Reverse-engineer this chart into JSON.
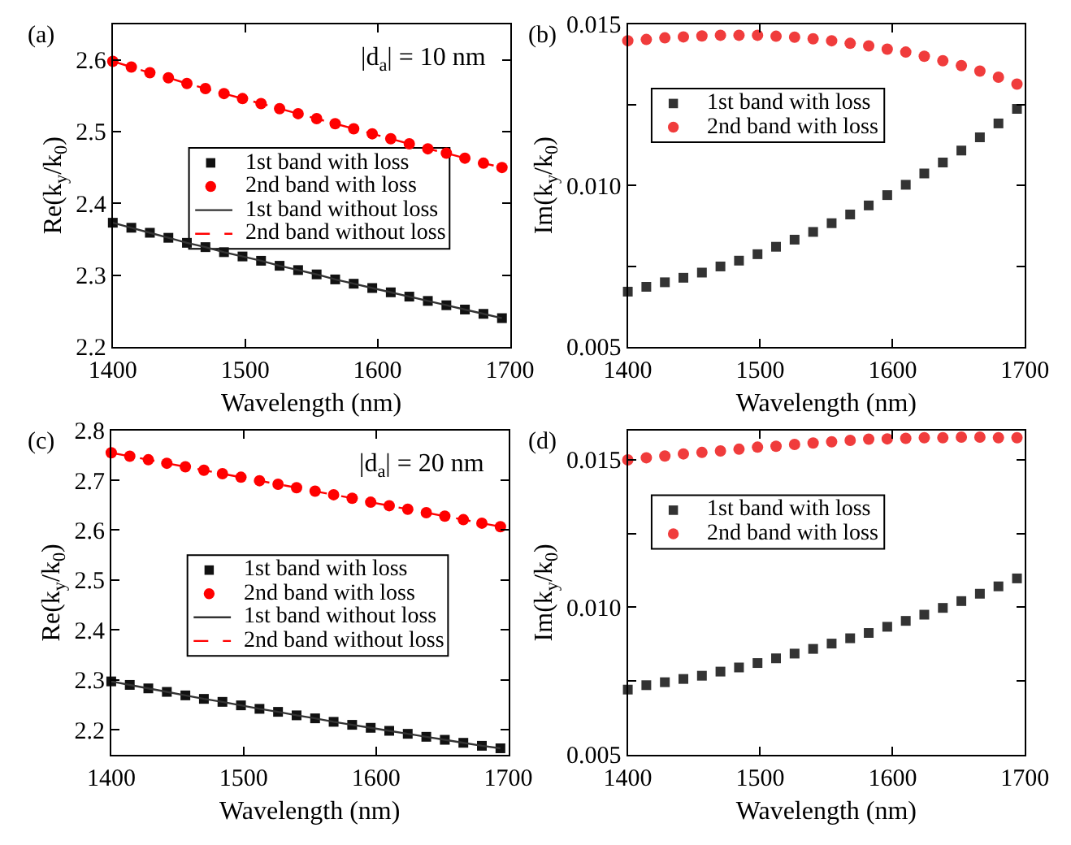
{
  "chart_data": [
    {
      "type": "scatter",
      "xlabel": "Wavelength (nm)",
      "ylabel": "Re(k$_{y}$/k$_{0}$)",
      "annotations": [
        "(a)",
        "|d$_{a}$| = 10 nm"
      ],
      "x": [
        1400,
        1414,
        1428,
        1442,
        1456,
        1470,
        1484,
        1498,
        1512,
        1526,
        1540,
        1554,
        1568,
        1582,
        1596,
        1610,
        1624,
        1638,
        1652,
        1666,
        1680,
        1694
      ],
      "xlim": [
        1400,
        1700
      ],
      "xticks": [
        1400,
        1500,
        1600,
        1700
      ],
      "ylim": [
        2.2,
        2.65
      ],
      "yticks": [
        2.2,
        2.3,
        2.4,
        2.5,
        2.6
      ],
      "grid": false,
      "legend": "center",
      "series": [
        {
          "name": "1st band with loss",
          "marker": "square",
          "color": "#111111",
          "values": [
            2.373,
            2.366,
            2.359,
            2.352,
            2.345,
            2.339,
            2.332,
            2.326,
            2.32,
            2.313,
            2.307,
            2.301,
            2.294,
            2.288,
            2.282,
            2.276,
            2.27,
            2.264,
            2.258,
            2.252,
            2.246,
            2.24
          ]
        },
        {
          "name": "2nd band with loss",
          "marker": "circle",
          "color": "#ff0000",
          "values": [
            2.598,
            2.59,
            2.582,
            2.575,
            2.567,
            2.56,
            2.553,
            2.546,
            2.539,
            2.532,
            2.525,
            2.518,
            2.511,
            2.504,
            2.497,
            2.49,
            2.483,
            2.476,
            2.47,
            2.463,
            2.456,
            2.45
          ]
        },
        {
          "name": "1st band without loss",
          "type": "line",
          "line_style": "solid",
          "color": "#333333",
          "values": [
            2.373,
            2.366,
            2.359,
            2.352,
            2.345,
            2.339,
            2.332,
            2.326,
            2.32,
            2.313,
            2.307,
            2.301,
            2.294,
            2.288,
            2.282,
            2.276,
            2.27,
            2.264,
            2.258,
            2.252,
            2.246,
            2.24
          ]
        },
        {
          "name": "2nd band without loss",
          "type": "line",
          "line_style": "dashed",
          "color": "#ff0000",
          "values": [
            2.598,
            2.59,
            2.582,
            2.575,
            2.567,
            2.56,
            2.553,
            2.546,
            2.539,
            2.532,
            2.525,
            2.518,
            2.511,
            2.504,
            2.497,
            2.49,
            2.483,
            2.476,
            2.47,
            2.463,
            2.456,
            2.45
          ]
        }
      ]
    },
    {
      "type": "scatter",
      "xlabel": "Wavelength (nm)",
      "ylabel": "Im(k$_{y}$/k$_{0}$)",
      "annotations": [
        "(b)"
      ],
      "x": [
        1400,
        1414,
        1428,
        1442,
        1456,
        1470,
        1484,
        1498,
        1512,
        1526,
        1540,
        1554,
        1568,
        1582,
        1596,
        1610,
        1624,
        1638,
        1652,
        1666,
        1680,
        1694
      ],
      "xlim": [
        1400,
        1700
      ],
      "xticks": [
        1400,
        1500,
        1600,
        1700
      ],
      "ylim": [
        0.005,
        0.015
      ],
      "yticks": [
        0.005,
        {
          "value": 0.0075,
          "label": null
        },
        {
          "value": 0.01,
          "label": "0.010"
        },
        {
          "value": 0.0125,
          "label": null
        },
        0.015
      ],
      "grid": false,
      "legend": "top left",
      "series": [
        {
          "name": "1st band with loss",
          "marker": "square",
          "color": "#333333",
          "values": [
            0.00671,
            0.00686,
            0.007,
            0.00714,
            0.0073,
            0.00749,
            0.00767,
            0.00787,
            0.0081,
            0.00832,
            0.00856,
            0.00883,
            0.0091,
            0.00938,
            0.0097,
            0.01002,
            0.01037,
            0.01071,
            0.01108,
            0.01149,
            0.01192,
            0.01237
          ]
        },
        {
          "name": "2nd band with loss",
          "marker": "circle",
          "color": "#f03c3c",
          "values": [
            0.01448,
            0.01452,
            0.01457,
            0.0146,
            0.01463,
            0.01465,
            0.01465,
            0.01465,
            0.01462,
            0.01459,
            0.01454,
            0.01448,
            0.0144,
            0.01432,
            0.01422,
            0.01413,
            0.014,
            0.01386,
            0.01371,
            0.01354,
            0.01335,
            0.01314
          ]
        }
      ]
    },
    {
      "type": "scatter",
      "xlabel": "Wavelength (nm)",
      "ylabel": "Re(k$_{y}$/k$_{0}$)",
      "annotations": [
        "(c)",
        "|d$_{a}$| = 20 nm"
      ],
      "x": [
        1400,
        1414,
        1428,
        1442,
        1456,
        1470,
        1484,
        1498,
        1512,
        1526,
        1540,
        1554,
        1568,
        1582,
        1596,
        1610,
        1624,
        1638,
        1652,
        1666,
        1680,
        1694
      ],
      "xlim": [
        1400,
        1700
      ],
      "xticks": [
        1400,
        1500,
        1600,
        1700
      ],
      "ylim": [
        2.15,
        2.8
      ],
      "yticks": [
        2.2,
        2.3,
        2.4,
        2.5,
        2.6,
        2.7,
        2.8
      ],
      "grid": false,
      "legend": "center",
      "series": [
        {
          "name": "1st band with loss",
          "marker": "square",
          "color": "#111111",
          "values": [
            2.297,
            2.29,
            2.283,
            2.276,
            2.269,
            2.262,
            2.256,
            2.249,
            2.242,
            2.236,
            2.229,
            2.223,
            2.216,
            2.21,
            2.204,
            2.198,
            2.192,
            2.186,
            2.18,
            2.174,
            2.168,
            2.163
          ]
        },
        {
          "name": "2nd band with loss",
          "marker": "circle",
          "color": "#ff0000",
          "values": [
            2.755,
            2.748,
            2.741,
            2.734,
            2.727,
            2.72,
            2.713,
            2.706,
            2.699,
            2.692,
            2.685,
            2.678,
            2.671,
            2.664,
            2.656,
            2.649,
            2.642,
            2.635,
            2.628,
            2.621,
            2.614,
            2.607
          ]
        },
        {
          "name": "1st band without loss",
          "type": "line",
          "line_style": "solid",
          "color": "#333333",
          "values": [
            2.297,
            2.29,
            2.283,
            2.276,
            2.269,
            2.262,
            2.256,
            2.249,
            2.242,
            2.236,
            2.229,
            2.223,
            2.216,
            2.21,
            2.204,
            2.198,
            2.192,
            2.186,
            2.18,
            2.174,
            2.168,
            2.163
          ]
        },
        {
          "name": "2nd band without loss",
          "type": "line",
          "line_style": "dashed",
          "color": "#ff0000",
          "values": [
            2.755,
            2.748,
            2.741,
            2.734,
            2.727,
            2.72,
            2.713,
            2.706,
            2.699,
            2.692,
            2.685,
            2.678,
            2.671,
            2.664,
            2.656,
            2.649,
            2.642,
            2.635,
            2.628,
            2.621,
            2.614,
            2.607
          ]
        }
      ]
    },
    {
      "type": "scatter",
      "xlabel": "Wavelength (nm)",
      "ylabel": "Im(k$_{y}$/k$_{0}$)",
      "annotations": [
        "(d)"
      ],
      "x": [
        1400,
        1414,
        1428,
        1442,
        1456,
        1470,
        1484,
        1498,
        1512,
        1526,
        1540,
        1554,
        1568,
        1582,
        1596,
        1610,
        1624,
        1638,
        1652,
        1666,
        1680,
        1694
      ],
      "xlim": [
        1400,
        1700
      ],
      "xticks": [
        1400,
        1500,
        1600,
        1700
      ],
      "ylim": [
        0.005,
        0.016
      ],
      "yticks": [
        0.005,
        {
          "value": 0.0075,
          "label": null
        },
        {
          "value": 0.01,
          "label": "0.010"
        },
        {
          "value": 0.0125,
          "label": null
        },
        0.015
      ],
      "grid": false,
      "legend": "top left",
      "series": [
        {
          "name": "1st band with loss",
          "marker": "square",
          "color": "#333333",
          "values": [
            0.00721,
            0.00736,
            0.00746,
            0.00757,
            0.00768,
            0.00782,
            0.00796,
            0.00811,
            0.00827,
            0.00843,
            0.00859,
            0.00877,
            0.00895,
            0.00913,
            0.00934,
            0.00954,
            0.00975,
            0.00998,
            0.01021,
            0.01046,
            0.01071,
            0.01098
          ]
        },
        {
          "name": "2nd band with loss",
          "marker": "circle",
          "color": "#f03c3c",
          "values": [
            0.015,
            0.01507,
            0.01513,
            0.0152,
            0.01525,
            0.0153,
            0.01536,
            0.01543,
            0.01546,
            0.01552,
            0.01557,
            0.01561,
            0.01566,
            0.0157,
            0.01571,
            0.01573,
            0.01575,
            0.01575,
            0.01577,
            0.01577,
            0.01575,
            0.01575
          ]
        }
      ]
    }
  ]
}
